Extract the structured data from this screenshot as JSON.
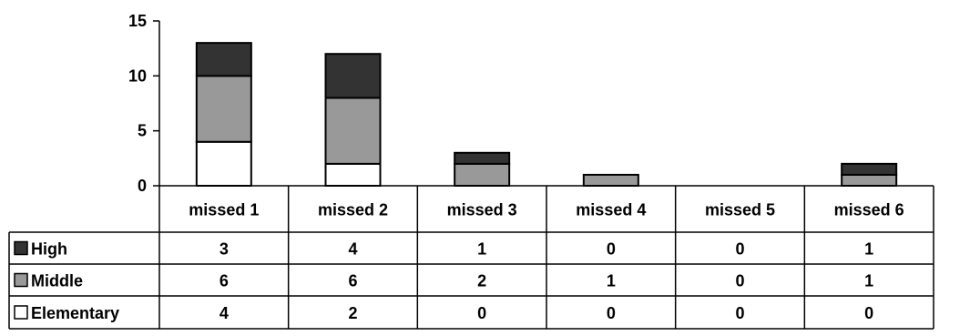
{
  "chart_data": {
    "type": "bar",
    "stacked": true,
    "categories": [
      "missed 1",
      "missed 2",
      "missed 3",
      "missed 4",
      "missed 5",
      "missed 6"
    ],
    "series": [
      {
        "name": "High",
        "values": [
          3,
          4,
          1,
          0,
          0,
          1
        ],
        "color": "#333333"
      },
      {
        "name": "Middle",
        "values": [
          6,
          6,
          2,
          1,
          0,
          1
        ],
        "color": "#999999"
      },
      {
        "name": "Elementary",
        "values": [
          4,
          2,
          0,
          0,
          0,
          0
        ],
        "color": "#ffffff"
      }
    ],
    "stack_order": [
      "Elementary",
      "Middle",
      "High"
    ],
    "yticks": [
      "0",
      "5",
      "10",
      "15"
    ],
    "ylim": [
      0,
      15
    ],
    "data_table": true,
    "grid": false
  }
}
